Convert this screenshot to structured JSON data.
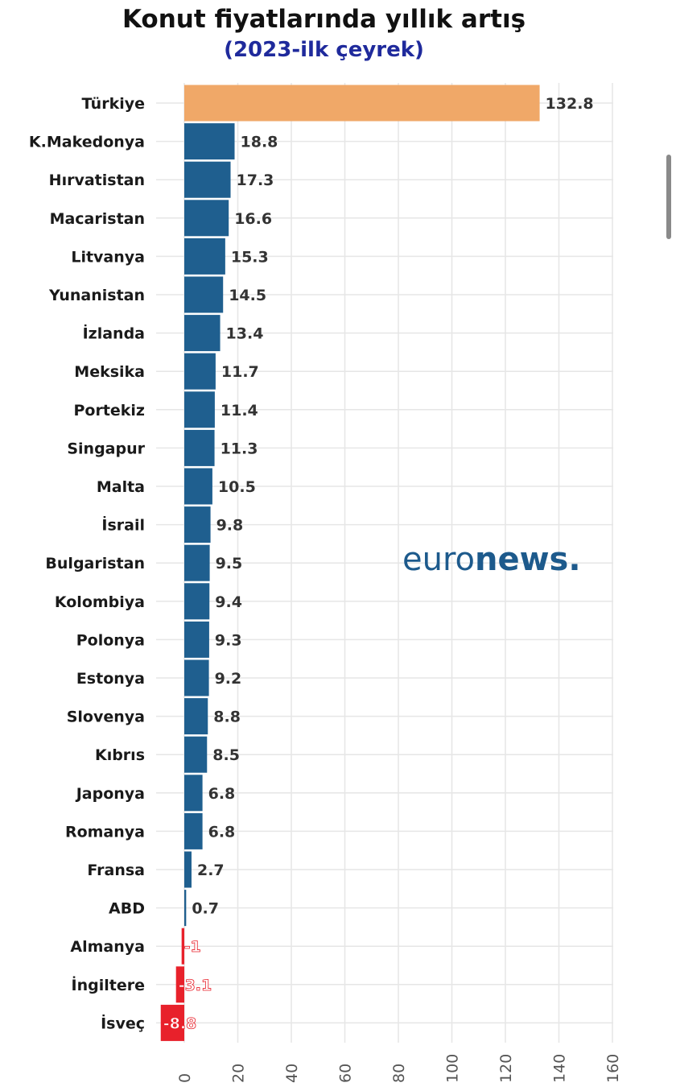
{
  "chart_data": {
    "type": "bar",
    "orientation": "horizontal",
    "title": "Konut fiyatlarında yıllık artış",
    "subtitle": "(2023-ilk çeyrek)",
    "categories": [
      "Türkiye",
      "K.Makedonya",
      "Hırvatistan",
      "Macaristan",
      "Litvanya",
      "Yunanistan",
      "İzlanda",
      "Meksika",
      "Portekiz",
      "Singapur",
      "Malta",
      "İsrail",
      "Bulgaristan",
      "Kolombiya",
      "Polonya",
      "Estonya",
      "Slovenya",
      "Kıbrıs",
      "Japonya",
      "Romanya",
      "Fransa",
      "ABD",
      "Almanya",
      "İngiltere",
      "İsveç"
    ],
    "values": [
      132.8,
      18.8,
      17.3,
      16.6,
      15.3,
      14.5,
      13.4,
      11.7,
      11.4,
      11.3,
      10.5,
      9.8,
      9.5,
      9.4,
      9.3,
      9.2,
      8.8,
      8.5,
      6.8,
      6.8,
      2.7,
      0.7,
      -1,
      -3.1,
      -8.8
    ],
    "data_labels": [
      "132.8",
      "18.8",
      "17.3",
      "16.6",
      "15.3",
      "14.5",
      "13.4",
      "11.7",
      "11.4",
      "11.3",
      "10.5",
      "9.8",
      "9.5",
      "9.4",
      "9.3",
      "9.2",
      "8.8",
      "8.5",
      "6.8",
      "6.8",
      "2.7",
      "0.7",
      "-1",
      "-3.1",
      "-8.8"
    ],
    "x_ticks": [
      "0",
      "20",
      "40",
      "60",
      "80",
      "100",
      "120",
      "140",
      "160"
    ],
    "xlim": [
      -10,
      160
    ],
    "grid": true,
    "colors": {
      "highlight": "#f0a868",
      "positive": "#1f5f8f",
      "negative": "#e8212b"
    }
  },
  "logo": {
    "part1": "euro",
    "part2": "news."
  }
}
